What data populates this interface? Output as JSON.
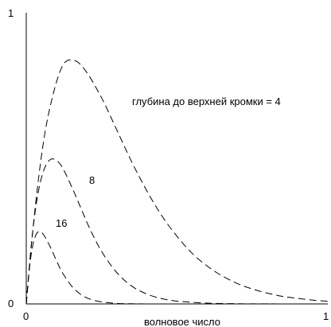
{
  "chart_data": {
    "type": "line",
    "title": "",
    "xlabel": "волновое число",
    "ylabel": "",
    "xlim": [
      0,
      1
    ],
    "ylim": [
      0,
      1
    ],
    "x_ticks": [
      {
        "value": 0,
        "label": "0"
      },
      {
        "value": 1,
        "label": "1"
      }
    ],
    "y_ticks": [
      {
        "value": 0,
        "label": "0"
      },
      {
        "value": 1,
        "label": "1"
      }
    ],
    "grid": false,
    "line_style": "dashed",
    "line_color": "#000000",
    "series": [
      {
        "name": "глубина до верхней кромки = 4",
        "x": [
          0,
          0.02,
          0.05,
          0.08,
          0.12,
          0.16,
          0.2,
          0.25,
          0.3,
          0.35,
          0.4,
          0.45,
          0.5,
          0.55,
          0.6,
          0.65,
          0.7,
          0.75,
          0.8,
          0.85,
          0.9,
          0.95,
          1.0
        ],
        "values": [
          0,
          0.236,
          0.506,
          0.681,
          0.817,
          0.836,
          0.796,
          0.707,
          0.598,
          0.487,
          0.388,
          0.302,
          0.232,
          0.174,
          0.13,
          0.096,
          0.07,
          0.051,
          0.037,
          0.026,
          0.019,
          0.013,
          0.009
        ]
      },
      {
        "name": "8",
        "x": [
          0,
          0.02,
          0.04,
          0.06,
          0.08,
          0.1,
          0.12,
          0.15,
          0.18,
          0.21,
          0.25,
          0.3,
          0.35,
          0.4,
          0.45,
          0.5,
          0.6,
          0.7,
          0.8,
          0.9,
          1.0
        ],
        "values": [
          0,
          0.236,
          0.385,
          0.464,
          0.496,
          0.493,
          0.468,
          0.404,
          0.332,
          0.26,
          0.18,
          0.108,
          0.061,
          0.034,
          0.018,
          0.0096,
          0.0026,
          0.0007,
          0.0002,
          0,
          0
        ]
      },
      {
        "name": "16",
        "x": [
          0,
          0.01,
          0.02,
          0.03,
          0.04,
          0.05,
          0.06,
          0.08,
          0.1,
          0.12,
          0.15,
          0.18,
          0.21,
          0.25,
          0.3,
          0.35,
          0.4,
          0.5,
          0.6
        ],
        "values": [
          0,
          0.118,
          0.193,
          0.232,
          0.248,
          0.246,
          0.234,
          0.195,
          0.149,
          0.107,
          0.062,
          0.033,
          0.017,
          0.007,
          0.002,
          0.0005,
          0.0001,
          0,
          0
        ]
      }
    ],
    "annotations": [
      {
        "text": "глубина до верхней кромки = 4",
        "series": 0
      },
      {
        "text": "8",
        "series": 1
      },
      {
        "text": "16",
        "series": 2
      }
    ]
  }
}
